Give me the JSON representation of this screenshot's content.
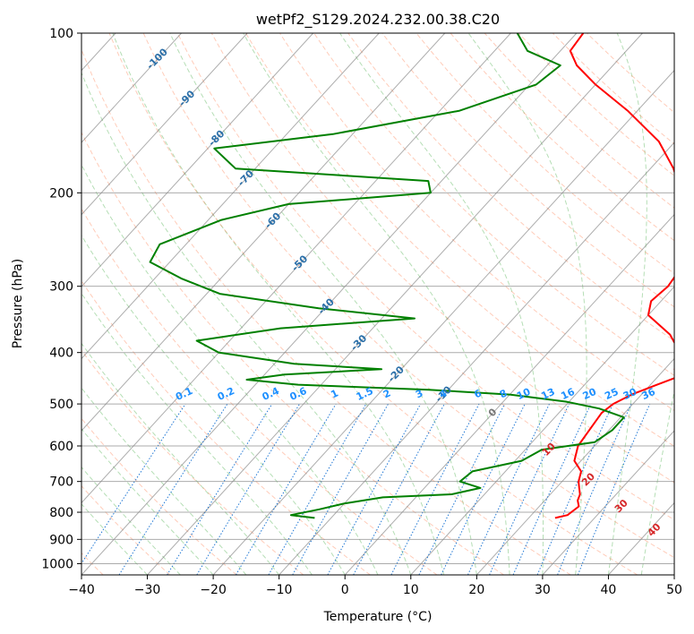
{
  "chart_data": {
    "type": "skew-t",
    "title": "wetPf2_S129.2024.232.00.38.C20",
    "xlabel": "Temperature (°C)",
    "ylabel": "Pressure (hPa)",
    "xlim": [
      -40,
      50
    ],
    "ylim": [
      1050,
      100
    ],
    "y_scale": "log",
    "grid": true,
    "x_ticks": [
      "−40",
      "−30",
      "−20",
      "−10",
      "0",
      "10",
      "20",
      "30",
      "40",
      "50"
    ],
    "y_ticks": [
      "100",
      "200",
      "300",
      "400",
      "500",
      "600",
      "700",
      "800",
      "900",
      "1000"
    ],
    "y_tick_values": [
      100,
      200,
      300,
      400,
      500,
      600,
      700,
      800,
      900,
      1000
    ],
    "isotherm_labels": [
      "-100",
      "-90",
      "-80",
      "-70",
      "-60",
      "-50",
      "-40",
      "-30",
      "-20",
      "-10",
      "0"
    ],
    "isotherm_values": [
      -100,
      -90,
      -80,
      -70,
      -60,
      -50,
      -40,
      -30,
      -20,
      -10,
      0
    ],
    "mixing_ratio_labels": [
      "0.1",
      "0.2",
      "0.4",
      "0.6",
      "1",
      "1.5",
      "2",
      "3",
      "4",
      "6",
      "8",
      "10",
      "13",
      "16",
      "20",
      "25",
      "30",
      "36"
    ],
    "dry_adiabat_labels": [
      "10",
      "20",
      "30",
      "40"
    ],
    "series": [
      {
        "color": "#ff0000",
        "points": [
          [
            820,
            24.0
          ],
          [
            810,
            25.5
          ],
          [
            780,
            26.0
          ],
          [
            760,
            25.0
          ],
          [
            740,
            24.5
          ],
          [
            720,
            23.5
          ],
          [
            700,
            22.5
          ],
          [
            670,
            21.5
          ],
          [
            640,
            19.0
          ],
          [
            600,
            17.5
          ],
          [
            560,
            17.0
          ],
          [
            520,
            16.5
          ],
          [
            500,
            17.0
          ],
          [
            480,
            18.5
          ],
          [
            460,
            21.0
          ],
          [
            445,
            23.0
          ],
          [
            430,
            21.5
          ],
          [
            400,
            20.0
          ],
          [
            370,
            16.0
          ],
          [
            340,
            10.0
          ],
          [
            320,
            8.5
          ],
          [
            300,
            9.0
          ],
          [
            280,
            8.5
          ],
          [
            250,
            5.5
          ],
          [
            220,
            2.0
          ],
          [
            200,
            -2.0
          ],
          [
            180,
            -6.5
          ],
          [
            160,
            -12.5
          ],
          [
            140,
            -21.5
          ],
          [
            125,
            -30.0
          ],
          [
            115,
            -35.5
          ],
          [
            108,
            -38.5
          ],
          [
            100,
            -39.0
          ]
        ]
      },
      {
        "color": "#008000",
        "points": [
          [
            820,
            -12.5
          ],
          [
            810,
            -16.5
          ],
          [
            790,
            -13.0
          ],
          [
            770,
            -10.0
          ],
          [
            750,
            -5.0
          ],
          [
            740,
            5.0
          ],
          [
            720,
            8.5
          ],
          [
            700,
            4.5
          ],
          [
            670,
            5.0
          ],
          [
            640,
            11.0
          ],
          [
            610,
            12.5
          ],
          [
            590,
            19.5
          ],
          [
            560,
            20.5
          ],
          [
            530,
            20.5
          ],
          [
            510,
            15.5
          ],
          [
            495,
            9.5
          ],
          [
            480,
            0.0
          ],
          [
            470,
            -13.0
          ],
          [
            460,
            -33.5
          ],
          [
            450,
            -42.0
          ],
          [
            440,
            -37.0
          ],
          [
            430,
            -23.0
          ],
          [
            420,
            -37.0
          ],
          [
            400,
            -50.0
          ],
          [
            380,
            -55.0
          ],
          [
            360,
            -44.0
          ],
          [
            345,
            -25.0
          ],
          [
            330,
            -41.0
          ],
          [
            310,
            -58.0
          ],
          [
            290,
            -66.0
          ],
          [
            270,
            -73.0
          ],
          [
            250,
            -74.0
          ],
          [
            225,
            -68.0
          ],
          [
            210,
            -60.0
          ],
          [
            200,
            -40.0
          ],
          [
            190,
            -42.0
          ],
          [
            180,
            -73.0
          ],
          [
            165,
            -79.0
          ],
          [
            155,
            -63.0
          ],
          [
            140,
            -47.0
          ],
          [
            125,
            -39.0
          ],
          [
            115,
            -38.0
          ],
          [
            108,
            -45.0
          ],
          [
            100,
            -49.0
          ]
        ]
      }
    ]
  }
}
